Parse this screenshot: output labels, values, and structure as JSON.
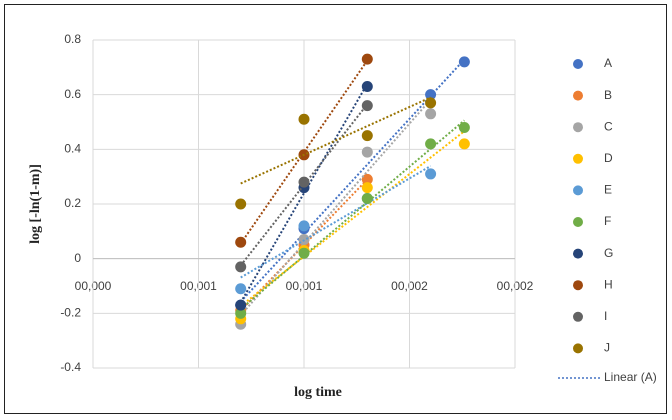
{
  "chart_data": {
    "type": "scatter",
    "xlabel": "log time",
    "ylabel": "log [-ln(1-m)]",
    "xlim": [
      0,
      0.002
    ],
    "ylim": [
      -0.4,
      0.8
    ],
    "xticks": [
      {
        "value": 0,
        "label": "00,000"
      },
      {
        "value": 0.0005,
        "label": "00,001"
      },
      {
        "value": 0.001,
        "label": "00,001"
      },
      {
        "value": 0.0015,
        "label": "00,002"
      },
      {
        "value": 0.002,
        "label": "00,002"
      }
    ],
    "yticks": [
      -0.4,
      -0.2,
      0,
      0.2,
      0.4,
      0.6,
      0.8
    ],
    "grid": true,
    "legend": "right",
    "trendline": "linear",
    "trendline_label": "Linear (A)",
    "series": [
      {
        "name": "A",
        "color": "#4472c4",
        "x": [
          0.0007,
          0.001,
          0.0016,
          0.00176
        ],
        "values": [
          -0.17,
          0.11,
          0.6,
          0.72
        ]
      },
      {
        "name": "B",
        "color": "#ed7d31",
        "x": [
          0.0007,
          0.001,
          0.0013
        ],
        "values": [
          -0.19,
          0.05,
          0.29
        ]
      },
      {
        "name": "C",
        "color": "#a5a5a5",
        "x": [
          0.0007,
          0.001,
          0.0013,
          0.0016
        ],
        "values": [
          -0.24,
          0.07,
          0.39,
          0.53
        ]
      },
      {
        "name": "D",
        "color": "#ffc000",
        "x": [
          0.0007,
          0.001,
          0.0013,
          0.00176
        ],
        "values": [
          -0.22,
          0.03,
          0.26,
          0.42
        ]
      },
      {
        "name": "E",
        "color": "#5b9bd5",
        "x": [
          0.0007,
          0.001,
          0.0013,
          0.0016
        ],
        "values": [
          -0.11,
          0.12,
          0.22,
          0.31
        ]
      },
      {
        "name": "F",
        "color": "#70ad47",
        "x": [
          0.0007,
          0.001,
          0.0013,
          0.0016,
          0.00176
        ],
        "values": [
          -0.2,
          0.02,
          0.22,
          0.42,
          0.48
        ]
      },
      {
        "name": "G",
        "color": "#264478",
        "x": [
          0.0007,
          0.001,
          0.0013
        ],
        "values": [
          -0.17,
          0.26,
          0.63
        ]
      },
      {
        "name": "H",
        "color": "#9e480e",
        "x": [
          0.0007,
          0.001,
          0.0013
        ],
        "values": [
          0.06,
          0.38,
          0.73
        ]
      },
      {
        "name": "I",
        "color": "#636363",
        "x": [
          0.0007,
          0.001,
          0.0013
        ],
        "values": [
          -0.03,
          0.28,
          0.56
        ]
      },
      {
        "name": "J",
        "color": "#997300",
        "x": [
          0.0007,
          0.001,
          0.0013,
          0.0016
        ],
        "values": [
          0.2,
          0.51,
          0.45,
          0.57
        ]
      }
    ]
  }
}
